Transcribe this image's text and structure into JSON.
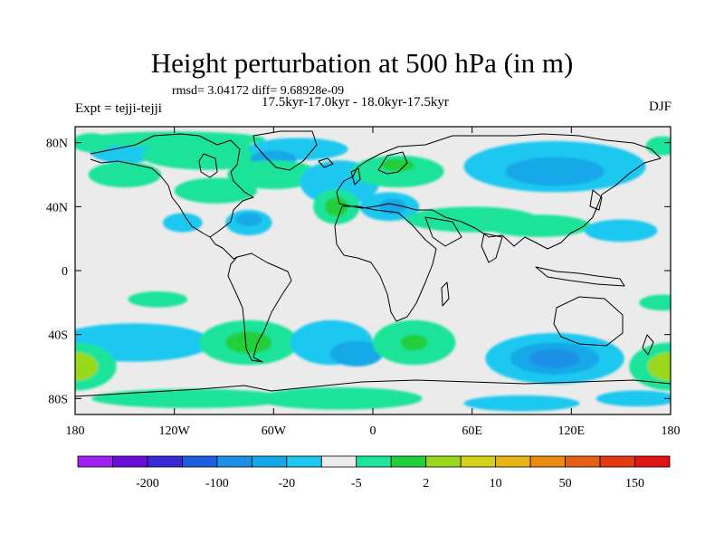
{
  "figure": {
    "title": "Height perturbation at 500 hPa (in m)",
    "stats_line": "rmsd= 3.04172 diff= 9.68928e-09",
    "period_line": "17.5kyr-17.0kyr - 18.0kyr-17.5kyr",
    "left_label": "Expt = tejji-tejji",
    "right_label": "DJF"
  },
  "axes": {
    "x_ticks": [
      "180",
      "120W",
      "60W",
      "0",
      "60E",
      "120E",
      "180"
    ],
    "x_values": [
      -180,
      -120,
      -60,
      0,
      60,
      120,
      180
    ],
    "y_ticks": [
      "80N",
      "40N",
      "0",
      "40S",
      "80S"
    ],
    "y_values": [
      80,
      40,
      0,
      -40,
      -80
    ],
    "lon_range": [
      -180,
      180
    ],
    "lat_range": [
      -90,
      90
    ]
  },
  "colorbar": {
    "colors": [
      "#a020f0",
      "#6a0dd8",
      "#3a2ad6",
      "#1b5ee0",
      "#1e8fe6",
      "#14a8e8",
      "#1ec8f0",
      "#ebebeb",
      "#1ee39a",
      "#23cf3b",
      "#9ad81f",
      "#d6d21a",
      "#e6b414",
      "#ea8c12",
      "#e55f14",
      "#e33a12",
      "#e01414"
    ],
    "labels": [
      "-200",
      "-100",
      "-20",
      "-5",
      "2",
      "10",
      "50",
      "150"
    ],
    "label_after_box": [
      1,
      3,
      5,
      7,
      9,
      11,
      13,
      15
    ]
  },
  "field": {
    "background": "#ebebeb",
    "blobs": [
      {
        "lon": -150,
        "lat": 76,
        "rx": 22,
        "ry": 9,
        "c": "#1ec8f0"
      },
      {
        "lon": -120,
        "lat": 82,
        "rx": 55,
        "ry": 5,
        "c": "#1ee39a"
      },
      {
        "lon": -100,
        "lat": 72,
        "rx": 40,
        "ry": 9,
        "c": "#1ee39a"
      },
      {
        "lon": -150,
        "lat": 60,
        "rx": 22,
        "ry": 8,
        "c": "#1ee39a"
      },
      {
        "lon": -45,
        "lat": 76,
        "rx": 30,
        "ry": 7,
        "c": "#1ec8f0"
      },
      {
        "lon": -60,
        "lat": 70,
        "rx": 14,
        "ry": 5,
        "c": "#14a8e8"
      },
      {
        "lon": -60,
        "lat": 60,
        "rx": 28,
        "ry": 9,
        "c": "#1ee39a"
      },
      {
        "lon": -95,
        "lat": 50,
        "rx": 25,
        "ry": 8,
        "c": "#1ee39a"
      },
      {
        "lon": -20,
        "lat": 55,
        "rx": 24,
        "ry": 14,
        "c": "#1ec8f0"
      },
      {
        "lon": -22,
        "lat": 40,
        "rx": 14,
        "ry": 11,
        "c": "#1ee39a"
      },
      {
        "lon": -22,
        "lat": 40,
        "rx": 7,
        "ry": 6,
        "c": "#23cf3b"
      },
      {
        "lon": 10,
        "lat": 40,
        "rx": 18,
        "ry": 9,
        "c": "#1ec8f0"
      },
      {
        "lon": 12,
        "lat": 40,
        "rx": 8,
        "ry": 5,
        "c": "#14a8e8"
      },
      {
        "lon": 15,
        "lat": 62,
        "rx": 28,
        "ry": 10,
        "c": "#1ee39a"
      },
      {
        "lon": 15,
        "lat": 66,
        "rx": 10,
        "ry": 4,
        "c": "#23cf3b"
      },
      {
        "lon": 60,
        "lat": 32,
        "rx": 40,
        "ry": 8,
        "c": "#1ee39a"
      },
      {
        "lon": 100,
        "lat": 28,
        "rx": 32,
        "ry": 7,
        "c": "#1ee39a"
      },
      {
        "lon": 110,
        "lat": 65,
        "rx": 55,
        "ry": 16,
        "c": "#1ec8f0"
      },
      {
        "lon": 110,
        "lat": 62,
        "rx": 30,
        "ry": 9,
        "c": "#14a8e8"
      },
      {
        "lon": 150,
        "lat": 25,
        "rx": 22,
        "ry": 7,
        "c": "#1ec8f0"
      },
      {
        "lon": -170,
        "lat": 80,
        "rx": 12,
        "ry": 6,
        "c": "#1ee39a"
      },
      {
        "lon": 175,
        "lat": 78,
        "rx": 10,
        "ry": 6,
        "c": "#1ee39a"
      },
      {
        "lon": -115,
        "lat": 30,
        "rx": 12,
        "ry": 6,
        "c": "#1ec8f0"
      },
      {
        "lon": -75,
        "lat": 30,
        "rx": 14,
        "ry": 8,
        "c": "#1ec8f0"
      },
      {
        "lon": -75,
        "lat": 32,
        "rx": 8,
        "ry": 4,
        "c": "#14a8e8"
      },
      {
        "lon": -130,
        "lat": -18,
        "rx": 18,
        "ry": 5,
        "c": "#1ee39a"
      },
      {
        "lon": 175,
        "lat": -20,
        "rx": 14,
        "ry": 5,
        "c": "#1ee39a"
      },
      {
        "lon": -145,
        "lat": -45,
        "rx": 48,
        "ry": 12,
        "c": "#1ec8f0"
      },
      {
        "lon": 180,
        "lat": -60,
        "rx": 25,
        "ry": 15,
        "c": "#1ee39a"
      },
      {
        "lon": 180,
        "lat": -60,
        "rx": 14,
        "ry": 9,
        "c": "#9ad81f"
      },
      {
        "lon": -180,
        "lat": -60,
        "rx": 25,
        "ry": 15,
        "c": "#1ee39a"
      },
      {
        "lon": -180,
        "lat": -60,
        "rx": 14,
        "ry": 9,
        "c": "#9ad81f"
      },
      {
        "lon": -75,
        "lat": -45,
        "rx": 30,
        "ry": 14,
        "c": "#1ee39a"
      },
      {
        "lon": -75,
        "lat": -45,
        "rx": 14,
        "ry": 7,
        "c": "#23cf3b"
      },
      {
        "lon": -25,
        "lat": -45,
        "rx": 25,
        "ry": 14,
        "c": "#1ec8f0"
      },
      {
        "lon": -10,
        "lat": -52,
        "rx": 16,
        "ry": 8,
        "c": "#14a8e8"
      },
      {
        "lon": 25,
        "lat": -45,
        "rx": 25,
        "ry": 14,
        "c": "#1ee39a"
      },
      {
        "lon": 25,
        "lat": -45,
        "rx": 8,
        "ry": 5,
        "c": "#23cf3b"
      },
      {
        "lon": 110,
        "lat": -55,
        "rx": 42,
        "ry": 16,
        "c": "#1ec8f0"
      },
      {
        "lon": 110,
        "lat": -55,
        "rx": 27,
        "ry": 10,
        "c": "#14a8e8"
      },
      {
        "lon": 110,
        "lat": -55,
        "rx": 15,
        "ry": 6,
        "c": "#1e8fe6"
      },
      {
        "lon": -110,
        "lat": -80,
        "rx": 60,
        "ry": 6,
        "c": "#1ee39a"
      },
      {
        "lon": -20,
        "lat": -80,
        "rx": 50,
        "ry": 7,
        "c": "#1ee39a"
      },
      {
        "lon": 90,
        "lat": -83,
        "rx": 35,
        "ry": 5,
        "c": "#1ec8f0"
      },
      {
        "lon": 160,
        "lat": -80,
        "rx": 25,
        "ry": 5,
        "c": "#1ec8f0"
      }
    ]
  }
}
